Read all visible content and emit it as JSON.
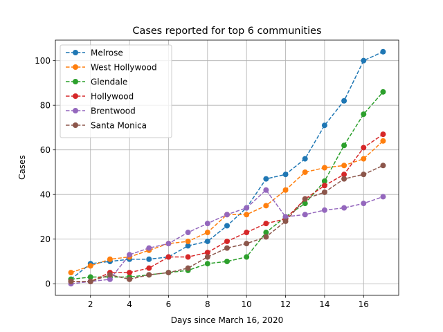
{
  "chart_data": {
    "type": "line",
    "title": "Cases reported for top 6 communities",
    "xlabel": "Days since March 16, 2020",
    "ylabel": "Cases",
    "xlim": [
      0.2,
      17.8
    ],
    "ylim": [
      -5.2,
      109.2
    ],
    "xticks": [
      2,
      4,
      6,
      8,
      10,
      12,
      14,
      16
    ],
    "yticks": [
      0,
      20,
      40,
      60,
      80,
      100
    ],
    "grid": true,
    "legend_position": "top-left",
    "line_style": "dashed",
    "marker": "circle",
    "x": [
      1,
      2,
      3,
      4,
      5,
      6,
      7,
      8,
      9,
      10,
      11,
      12,
      13,
      14,
      15,
      16,
      17
    ],
    "series": [
      {
        "name": "Melrose",
        "color": "#1f77b4",
        "values": [
          2,
          9,
          10,
          11,
          11,
          12,
          17,
          19,
          26,
          34,
          47,
          49,
          56,
          71,
          82,
          100,
          104
        ]
      },
      {
        "name": "West Hollywood",
        "color": "#ff7f0e",
        "values": [
          5,
          8,
          11,
          12,
          15,
          18,
          19,
          23,
          31,
          31,
          35,
          42,
          50,
          52,
          53,
          56,
          64
        ]
      },
      {
        "name": "Glendale",
        "color": "#2ca02c",
        "values": [
          2,
          3,
          3,
          3,
          4,
          5,
          6,
          9,
          10,
          12,
          23,
          30,
          36,
          46,
          62,
          76,
          86
        ]
      },
      {
        "name": "Hollywood",
        "color": "#d62728",
        "values": [
          1,
          1,
          5,
          5,
          7,
          12,
          12,
          14,
          19,
          23,
          27,
          29,
          38,
          44,
          49,
          61,
          67
        ]
      },
      {
        "name": "Brentwood",
        "color": "#9467bd",
        "values": [
          0,
          1,
          2,
          13,
          16,
          18,
          23,
          27,
          31,
          34,
          42,
          30,
          31,
          33,
          34,
          36,
          39
        ]
      },
      {
        "name": "Santa Monica",
        "color": "#8c564b",
        "values": [
          1,
          1,
          4,
          2,
          4,
          5,
          7,
          12,
          16,
          18,
          21,
          28,
          38,
          41,
          47,
          49,
          53
        ]
      }
    ]
  }
}
